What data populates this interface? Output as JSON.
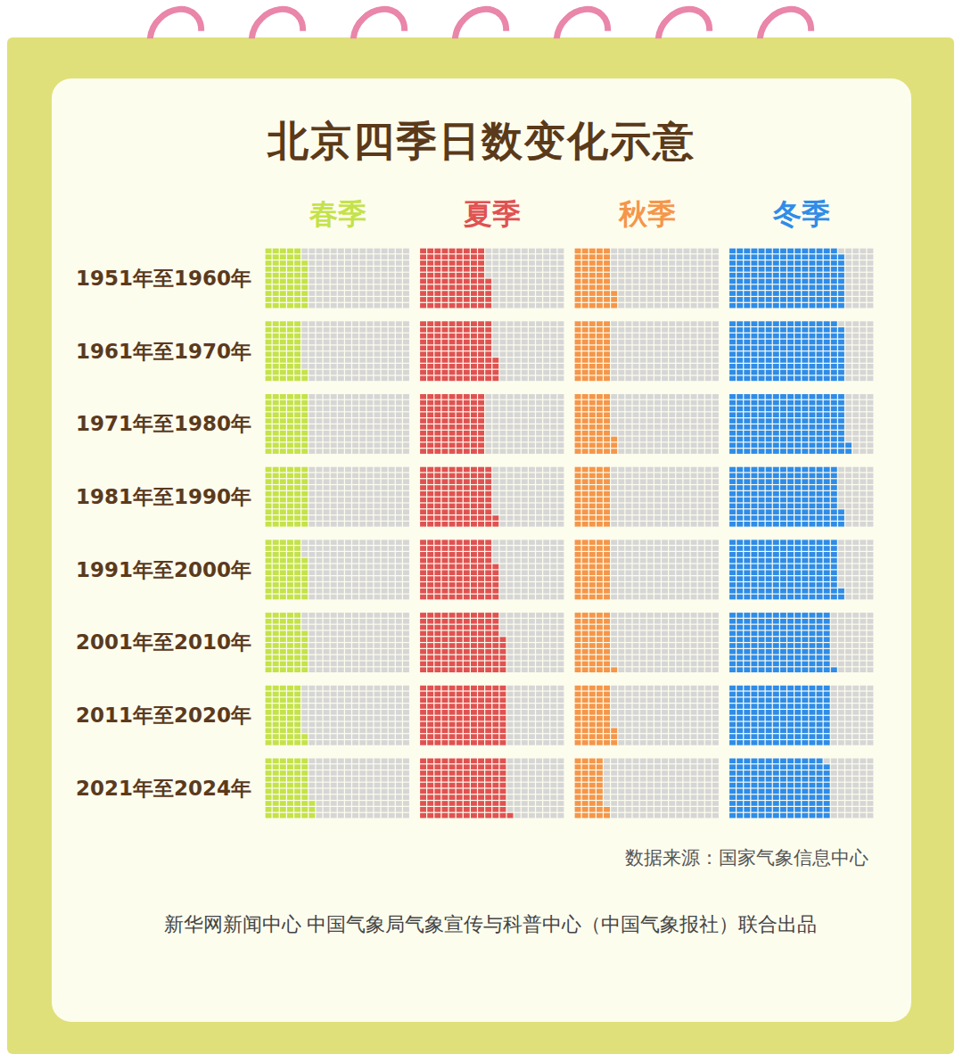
{
  "chart_data": {
    "type": "waffle",
    "title": "北京四季日数变化示意",
    "categories": [
      "1951年至1960年",
      "1961年至1970年",
      "1971年至1980年",
      "1981年至1990年",
      "1991年至2000年",
      "2001年至2010年",
      "2011年至2020年",
      "2021年至2024年"
    ],
    "series": [
      {
        "name": "春季",
        "color": "#c4e24a",
        "values": [
          58,
          52,
          60,
          60,
          57,
          57,
          52,
          63
        ]
      },
      {
        "name": "夏季",
        "color": "#e05252",
        "values": [
          95,
          104,
          90,
          102,
          106,
          116,
          120,
          121
        ]
      },
      {
        "name": "秋季",
        "color": "#f5964a",
        "values": [
          53,
          50,
          53,
          50,
          50,
          51,
          53,
          42
        ]
      },
      {
        "name": "冬季",
        "color": "#2f8ce8",
        "values": [
          159,
          159,
          162,
          153,
          152,
          141,
          140,
          139
        ]
      }
    ],
    "source": "数据来源：国家气象信息中心",
    "credit": "新华网新闻中心 中国气象局气象宣传与科普中心（中国气象报社）联合出品"
  }
}
